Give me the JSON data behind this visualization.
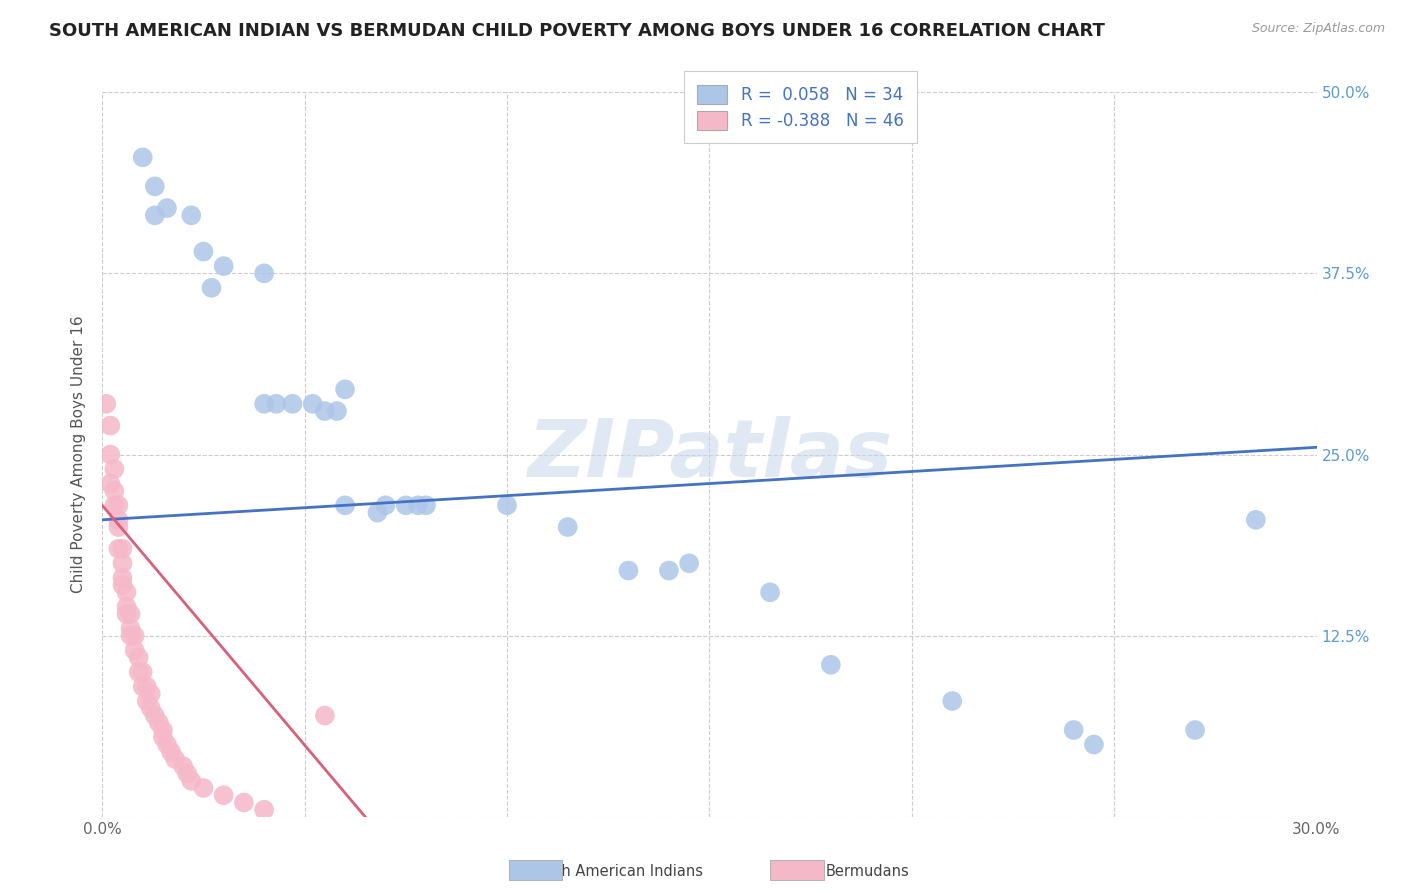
{
  "title": "SOUTH AMERICAN INDIAN VS BERMUDAN CHILD POVERTY AMONG BOYS UNDER 16 CORRELATION CHART",
  "source": "Source: ZipAtlas.com",
  "ylabel": "Child Poverty Among Boys Under 16",
  "xlim": [
    0.0,
    0.3
  ],
  "ylim": [
    0.0,
    0.5
  ],
  "xtick_positions": [
    0.0,
    0.05,
    0.1,
    0.15,
    0.2,
    0.25,
    0.3
  ],
  "xtick_labels": [
    "0.0%",
    "",
    "",
    "",
    "",
    "",
    "30.0%"
  ],
  "ytick_positions": [
    0.0,
    0.125,
    0.25,
    0.375,
    0.5
  ],
  "ytick_labels_right": [
    "",
    "12.5%",
    "25.0%",
    "37.5%",
    "50.0%"
  ],
  "blue_color": "#adc6e8",
  "pink_color": "#f5b8c8",
  "blue_line_color": "#4472c4",
  "pink_line_color": "#d9607a",
  "watermark": "ZIPatlas",
  "title_fontsize": 13,
  "axis_label_fontsize": 11,
  "tick_fontsize": 11,
  "legend_fontsize": 12,
  "blue_scatter_x": [
    0.01,
    0.013,
    0.013,
    0.016,
    0.022,
    0.025,
    0.027,
    0.03,
    0.04,
    0.04,
    0.043,
    0.047,
    0.052,
    0.055,
    0.058,
    0.06,
    0.06,
    0.068,
    0.07,
    0.075,
    0.078,
    0.08,
    0.1,
    0.115,
    0.13,
    0.14,
    0.145,
    0.165,
    0.18,
    0.21,
    0.24,
    0.245,
    0.27,
    0.285
  ],
  "blue_scatter_y": [
    0.455,
    0.435,
    0.415,
    0.42,
    0.415,
    0.39,
    0.365,
    0.38,
    0.375,
    0.285,
    0.285,
    0.285,
    0.285,
    0.28,
    0.28,
    0.295,
    0.215,
    0.21,
    0.215,
    0.215,
    0.215,
    0.215,
    0.215,
    0.2,
    0.17,
    0.17,
    0.175,
    0.155,
    0.105,
    0.08,
    0.06,
    0.05,
    0.06,
    0.205
  ],
  "pink_scatter_x": [
    0.001,
    0.002,
    0.002,
    0.002,
    0.003,
    0.003,
    0.003,
    0.004,
    0.004,
    0.004,
    0.004,
    0.005,
    0.005,
    0.005,
    0.005,
    0.006,
    0.006,
    0.006,
    0.007,
    0.007,
    0.007,
    0.008,
    0.008,
    0.009,
    0.009,
    0.01,
    0.01,
    0.011,
    0.011,
    0.012,
    0.012,
    0.013,
    0.014,
    0.015,
    0.015,
    0.016,
    0.017,
    0.018,
    0.02,
    0.021,
    0.022,
    0.025,
    0.03,
    0.035,
    0.04,
    0.055
  ],
  "pink_scatter_y": [
    0.285,
    0.27,
    0.25,
    0.23,
    0.24,
    0.225,
    0.215,
    0.215,
    0.205,
    0.2,
    0.185,
    0.185,
    0.175,
    0.165,
    0.16,
    0.155,
    0.145,
    0.14,
    0.14,
    0.13,
    0.125,
    0.125,
    0.115,
    0.11,
    0.1,
    0.1,
    0.09,
    0.09,
    0.08,
    0.085,
    0.075,
    0.07,
    0.065,
    0.06,
    0.055,
    0.05,
    0.045,
    0.04,
    0.035,
    0.03,
    0.025,
    0.02,
    0.015,
    0.01,
    0.005,
    0.07
  ],
  "blue_trend_x": [
    0.0,
    0.3
  ],
  "blue_trend_y": [
    0.205,
    0.255
  ],
  "pink_trend_x": [
    0.0,
    0.065
  ],
  "pink_trend_y": [
    0.215,
    0.0
  ]
}
